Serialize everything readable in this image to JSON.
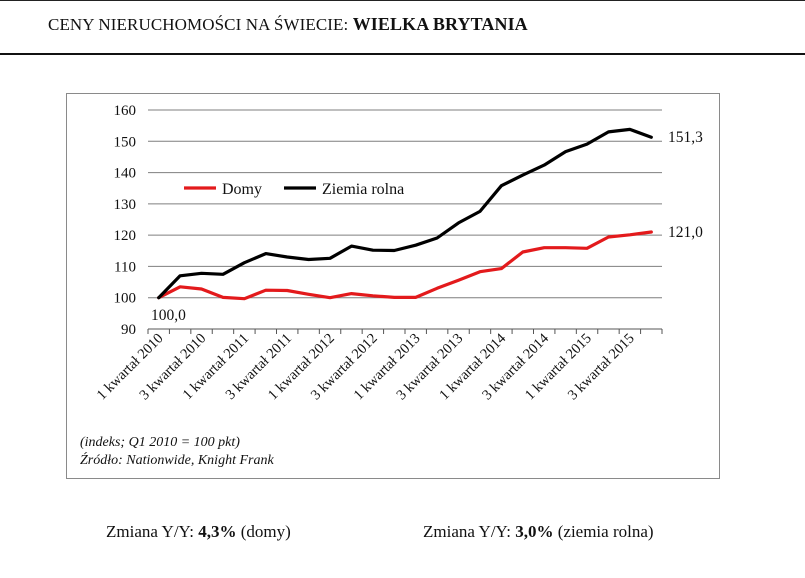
{
  "header": {
    "prefix": "CENY NIERUCHOMOŚCI NA ŚWIECIE: ",
    "country": "WIELKA BRYTANIA"
  },
  "colors": {
    "domy": "#e31a1c",
    "ziemia": "#000000",
    "grid": "#7f7f7f"
  },
  "chart_data": {
    "type": "line",
    "title": "",
    "xlabel": "",
    "ylabel": "",
    "ylim": [
      90,
      160
    ],
    "yticks": [
      90,
      100,
      110,
      120,
      130,
      140,
      150,
      160
    ],
    "tick_labels": [
      "1 kwartał 2010",
      "3 kwartał 2010",
      "1 kwartał 2011",
      "3 kwartał 2011",
      "1 kwartał 2012",
      "3 kwartał 2012",
      "1 kwartał 2013",
      "3 kwartał 2013",
      "1 kwartał 2014",
      "3 kwartał 2014",
      "1 kwartał 2015",
      "3 kwartał 2015"
    ],
    "legend": {
      "position": "upper-left",
      "entries": [
        "Domy",
        "Ziemia rolna"
      ]
    },
    "series": [
      {
        "name": "Domy",
        "color": "#e31a1c",
        "values": [
          100,
          103.5,
          102.8,
          100.1,
          99.7,
          102.4,
          102.3,
          101.1,
          100.0,
          101.3,
          100.6,
          100.1,
          100.1,
          103.0,
          105.6,
          108.3,
          109.3,
          114.6,
          116.0,
          116.0,
          115.8,
          119.4,
          120.1,
          121.0
        ],
        "end_label": "121,0"
      },
      {
        "name": "Ziemia rolna",
        "color": "#000000",
        "values": [
          100,
          107.0,
          107.8,
          107.5,
          111.2,
          114.1,
          113.0,
          112.2,
          112.6,
          116.5,
          115.2,
          115.1,
          116.8,
          119.1,
          123.9,
          127.6,
          135.8,
          139.2,
          142.4,
          146.7,
          149.1,
          153.0,
          153.8,
          151.3
        ],
        "end_label": "151,3"
      }
    ],
    "start_label": "100,0",
    "notes": [
      "(indeks; Q1 2010 = 100 pkt)",
      "Źródło: Nationwide, Knight Frank"
    ]
  },
  "footer": {
    "left": {
      "prefix": "Zmiana Y/Y: ",
      "value": "4,3%",
      "suffix": " (domy)"
    },
    "right": {
      "prefix": "Zmiana Y/Y: ",
      "value": "3,0%",
      "suffix": " (ziemia rolna)"
    }
  }
}
